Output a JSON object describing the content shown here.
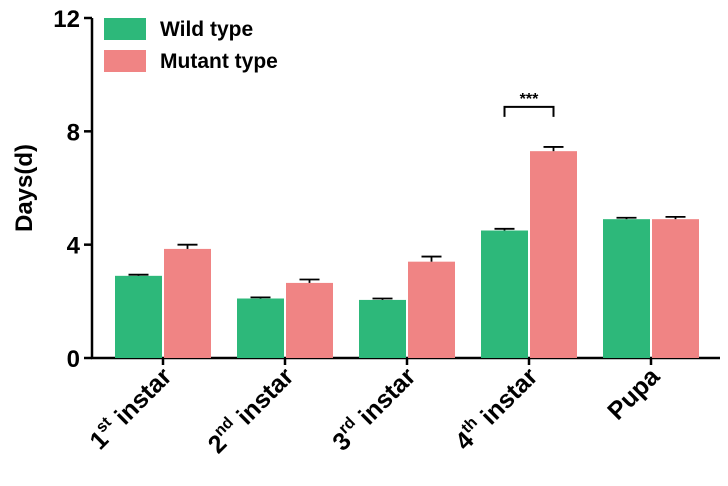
{
  "chart_data": {
    "type": "bar",
    "title": "",
    "xlabel": "",
    "ylabel": "Days(d)",
    "ylim": [
      0,
      12
    ],
    "yticks": [
      0,
      4,
      8,
      12
    ],
    "grid": false,
    "legend_position": "top-left",
    "categories": [
      {
        "base": "1",
        "sup": "st",
        "rest": " instar"
      },
      {
        "base": "2",
        "sup": "nd",
        "rest": " instar"
      },
      {
        "base": "3",
        "sup": "rd",
        "rest": " instar"
      },
      {
        "base": "4",
        "sup": "th",
        "rest": " instar"
      },
      {
        "base": "Pupa",
        "sup": "",
        "rest": ""
      }
    ],
    "series": [
      {
        "name": "Wild type",
        "color": "#2db87a",
        "values": [
          2.9,
          2.1,
          2.05,
          4.5,
          4.9
        ],
        "errors": [
          0.04,
          0.04,
          0.05,
          0.06,
          0.05
        ]
      },
      {
        "name": "Mutant type",
        "color": "#f08484",
        "values": [
          3.85,
          2.65,
          3.4,
          7.3,
          4.9
        ],
        "errors": [
          0.15,
          0.12,
          0.18,
          0.15,
          0.08
        ]
      }
    ],
    "annotations": [
      {
        "category_index": 3,
        "text": "***"
      }
    ]
  }
}
